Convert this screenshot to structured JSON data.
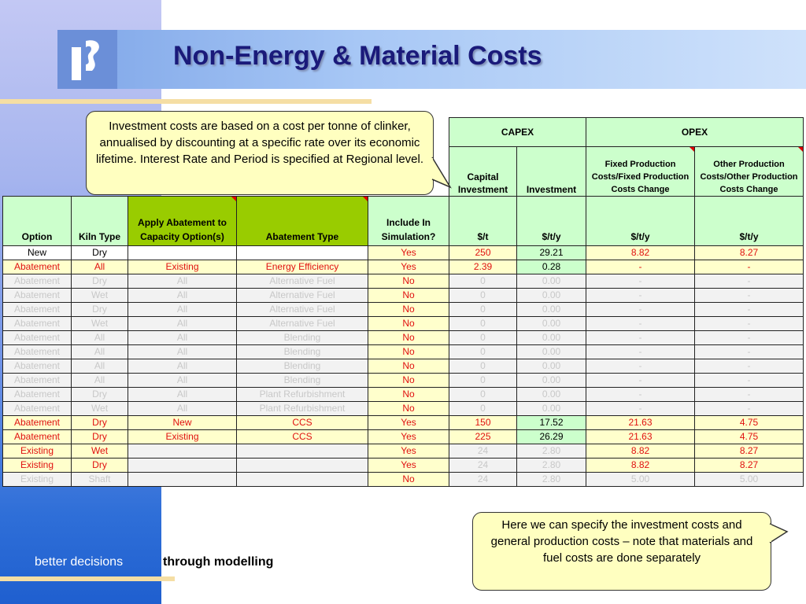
{
  "title": "Non-Energy & Material Costs",
  "footer": {
    "highlight": "better decisions",
    "rest": "through modelling"
  },
  "callouts": {
    "top": "Investment costs are based on a cost per tonne of clinker, annualised by discounting at a specific rate over its economic lifetime.  Interest Rate and Period is specified at Regional level.",
    "bottom": "Here we can specify the investment costs and general production costs – note that materials and fuel costs are done separately"
  },
  "table": {
    "groups": {
      "capex": "CAPEX",
      "opex": "OPEX"
    },
    "sub": {
      "capital_investment": "Capital Investment",
      "investment": "Investment",
      "fixed_prod": "Fixed Production Costs/Fixed Production Costs Change",
      "other_prod": "Other Production Costs/Other Production Costs Change"
    },
    "columns": [
      "Option",
      "Kiln Type",
      "Apply Abatement to Capacity Option(s)",
      "Abatement Type",
      "Include In Simulation?",
      "$/t",
      "$/t/y",
      "$/t/y",
      "$/t/y"
    ],
    "rows": [
      [
        "New",
        "Dry",
        "",
        "",
        "Yes",
        "250",
        "29.21",
        "8.82",
        "8.27"
      ],
      [
        "Abatement",
        "All",
        "Existing",
        "Energy Efficiency",
        "Yes",
        "2.39",
        "0.28",
        "-",
        "-"
      ],
      [
        "Abatement",
        "Dry",
        "All",
        "Alternative Fuel",
        "No",
        "0",
        "0.00",
        "-",
        "-"
      ],
      [
        "Abatement",
        "Wet",
        "All",
        "Alternative Fuel",
        "No",
        "0",
        "0.00",
        "-",
        "-"
      ],
      [
        "Abatement",
        "Dry",
        "All",
        "Alternative Fuel",
        "No",
        "0",
        "0.00",
        "-",
        "-"
      ],
      [
        "Abatement",
        "Wet",
        "All",
        "Alternative Fuel",
        "No",
        "0",
        "0.00",
        "-",
        "-"
      ],
      [
        "Abatement",
        "All",
        "All",
        "Blending",
        "No",
        "0",
        "0.00",
        "-",
        "-"
      ],
      [
        "Abatement",
        "All",
        "All",
        "Blending",
        "No",
        "0",
        "0.00",
        "-",
        "-"
      ],
      [
        "Abatement",
        "All",
        "All",
        "Blending",
        "No",
        "0",
        "0.00",
        "-",
        "-"
      ],
      [
        "Abatement",
        "All",
        "All",
        "Blending",
        "No",
        "0",
        "0.00",
        "-",
        "-"
      ],
      [
        "Abatement",
        "Dry",
        "All",
        "Plant Refurbishment",
        "No",
        "0",
        "0.00",
        "-",
        "-"
      ],
      [
        "Abatement",
        "Wet",
        "All",
        "Plant Refurbishment",
        "No",
        "0",
        "0.00",
        "-",
        "-"
      ],
      [
        "Abatement",
        "Dry",
        "New",
        "CCS",
        "Yes",
        "150",
        "17.52",
        "21.63",
        "4.75"
      ],
      [
        "Abatement",
        "Dry",
        "Existing",
        "CCS",
        "Yes",
        "225",
        "26.29",
        "21.63",
        "4.75"
      ],
      [
        "Existing",
        "Wet",
        "",
        "",
        "Yes",
        "24",
        "2.80",
        "8.82",
        "8.27"
      ],
      [
        "Existing",
        "Dry",
        "",
        "",
        "Yes",
        "24",
        "2.80",
        "8.82",
        "8.27"
      ],
      [
        "Existing",
        "Shaft",
        "",
        "",
        "No",
        "24",
        "2.80",
        "5.00",
        "5.00"
      ]
    ]
  }
}
